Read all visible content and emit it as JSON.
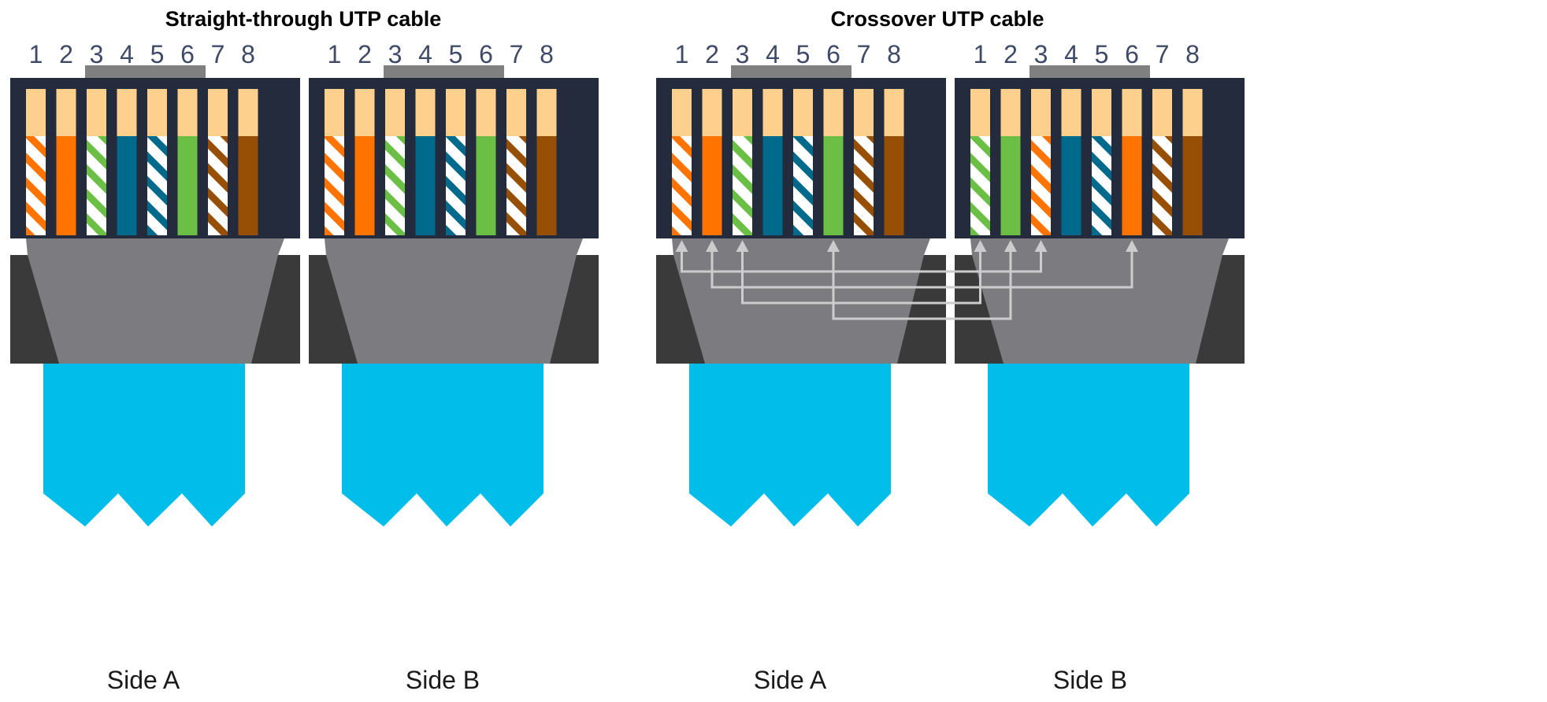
{
  "diagrams": [
    {
      "title": "Straight-through UTP cable",
      "crossover": false,
      "connectors": [
        {
          "side_label": "Side A",
          "wires": [
            "orange-white",
            "orange",
            "green-white",
            "blue",
            "blue-white",
            "green",
            "brown-white",
            "brown"
          ]
        },
        {
          "side_label": "Side B",
          "wires": [
            "orange-white",
            "orange",
            "green-white",
            "blue",
            "blue-white",
            "green",
            "brown-white",
            "brown"
          ]
        }
      ]
    },
    {
      "title": "Crossover UTP cable",
      "crossover": true,
      "connectors": [
        {
          "side_label": "Side A",
          "wires": [
            "orange-white",
            "orange",
            "green-white",
            "blue",
            "blue-white",
            "green",
            "brown-white",
            "brown"
          ]
        },
        {
          "side_label": "Side B",
          "wires": [
            "green-white",
            "green",
            "orange-white",
            "blue",
            "blue-white",
            "orange",
            "brown-white",
            "brown"
          ]
        }
      ],
      "crossover_links": [
        [
          1,
          3
        ],
        [
          2,
          6
        ],
        [
          3,
          1
        ],
        [
          6,
          2
        ]
      ]
    }
  ],
  "pin_numbers": [
    "1",
    "2",
    "3",
    "4",
    "5",
    "6",
    "7",
    "8"
  ],
  "colors": {
    "orange": "#ff7400",
    "green": "#6cbf45",
    "blue": "#006a8c",
    "brown": "#974f06",
    "contact": "#fdd18d",
    "connector_body": "#242b3d",
    "boot_dark": "#3a3a3a",
    "boot_grey": "#7c7b80",
    "cable": "#00bde9",
    "arrow": "#cccccc"
  }
}
